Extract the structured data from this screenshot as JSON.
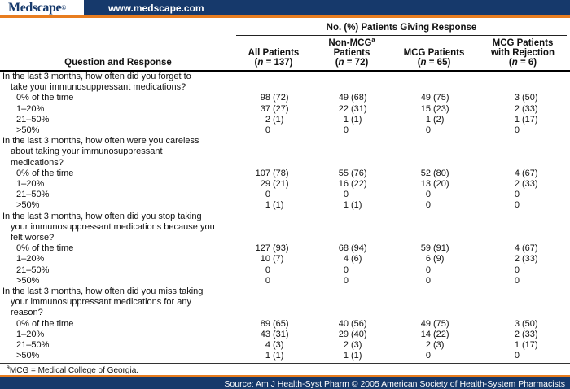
{
  "brand": {
    "logo_text": "Medscape",
    "logo_reg": "®",
    "url": "www.medscape.com",
    "navy_color": "#16396b",
    "orange_color": "#e87d1f"
  },
  "table": {
    "span_title": "No. (%) Patients Giving Response",
    "row_header": "Question and Response",
    "columns": [
      {
        "lines": [
          "All Patients"
        ],
        "n": "137"
      },
      {
        "lines": [
          "Non-MCG",
          "Patients"
        ],
        "sup": "a",
        "n": "72"
      },
      {
        "lines": [
          "MCG Patients"
        ],
        "n": "65"
      },
      {
        "lines": [
          "MCG Patients",
          "with Rejection"
        ],
        "n": "6"
      }
    ],
    "sections": [
      {
        "question_lines": [
          "In the last 3 months, how often did you forget to",
          "take your immunosuppressant medications?"
        ],
        "rows": [
          {
            "label": "0% of the time",
            "cells": [
              "98 (72)",
              "49 (68)",
              "49 (75)",
              "3 (50)"
            ]
          },
          {
            "label": "1–20%",
            "cells": [
              "37 (27)",
              "22 (31)",
              "15 (23)",
              "2 (33)"
            ]
          },
          {
            "label": "21–50%",
            "cells": [
              "2 (1)",
              "1 (1)",
              "1 (2)",
              "1 (17)"
            ]
          },
          {
            "label": ">50%",
            "cells": [
              "0",
              "0",
              "0",
              "0"
            ]
          }
        ]
      },
      {
        "question_lines": [
          "In the last 3 months, how often were you careless",
          "about taking your immunosuppressant",
          "medications?"
        ],
        "rows": [
          {
            "label": "0% of the time",
            "cells": [
              "107 (78)",
              "55 (76)",
              "52 (80)",
              "4 (67)"
            ]
          },
          {
            "label": "1–20%",
            "cells": [
              "29 (21)",
              "16 (22)",
              "13 (20)",
              "2 (33)"
            ]
          },
          {
            "label": "21–50%",
            "cells": [
              "0",
              "0",
              "0",
              "0"
            ]
          },
          {
            "label": ">50%",
            "cells": [
              "1 (1)",
              "1 (1)",
              "0",
              "0"
            ]
          }
        ]
      },
      {
        "question_lines": [
          "In the last 3 months, how often did you stop taking",
          "your immunosuppressant medications because you",
          "felt worse?"
        ],
        "rows": [
          {
            "label": "0% of the time",
            "cells": [
              "127 (93)",
              "68 (94)",
              "59 (91)",
              "4 (67)"
            ]
          },
          {
            "label": "1–20%",
            "cells": [
              "10 (7)",
              "4 (6)",
              "6 (9)",
              "2 (33)"
            ]
          },
          {
            "label": "21–50%",
            "cells": [
              "0",
              "0",
              "0",
              "0"
            ]
          },
          {
            "label": ">50%",
            "cells": [
              "0",
              "0",
              "0",
              "0"
            ]
          }
        ]
      },
      {
        "question_lines": [
          "In the last 3 months, how often did you miss taking",
          "your immunosuppressant medications for any",
          "reason?"
        ],
        "rows": [
          {
            "label": "0% of the time",
            "cells": [
              "89 (65)",
              "40 (56)",
              "49 (75)",
              "3 (50)"
            ]
          },
          {
            "label": "1–20%",
            "cells": [
              "43 (31)",
              "29 (40)",
              "14 (22)",
              "2 (33)"
            ]
          },
          {
            "label": "21–50%",
            "cells": [
              "4 (3)",
              "2 (3)",
              "2 (3)",
              "1 (17)"
            ]
          },
          {
            "label": ">50%",
            "cells": [
              "1 (1)",
              "1 (1)",
              "0",
              "0"
            ]
          }
        ]
      }
    ]
  },
  "footnote": {
    "sup": "a",
    "text": "MCG = Medical College of Georgia."
  },
  "footer": {
    "source": "Source: Am J Health-Syst Pharm © 2005 American Society of Health-System Pharmacists"
  }
}
